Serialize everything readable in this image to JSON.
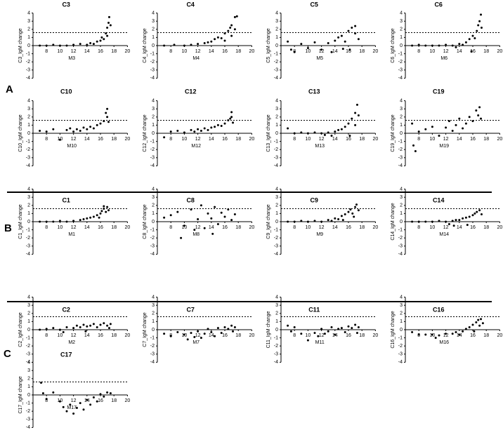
{
  "panel_labels": [
    "A",
    "B",
    "C"
  ],
  "chart_data": [
    {
      "type": "scatter",
      "title": "C3",
      "x_label": "M3",
      "y_label": "C3_IgM change",
      "x": [
        7,
        8,
        9,
        10,
        11,
        12,
        13,
        14,
        14.5,
        15,
        15.5,
        16,
        16.2,
        16.5,
        16.8,
        17,
        17,
        17.2,
        17.3,
        17.5
      ],
      "y": [
        0,
        0,
        0.1,
        0,
        0,
        0.1,
        0.2,
        0.1,
        0.3,
        0.2,
        0.5,
        0.6,
        1.0,
        0.8,
        1.5,
        2.2,
        1.2,
        2.8,
        3.5,
        2.5
      ],
      "xlim": [
        6,
        20
      ],
      "ylim": [
        -4,
        4
      ],
      "xticks": [
        8,
        10,
        12,
        14,
        16,
        18,
        20
      ],
      "yticks": [
        -4,
        -3,
        -2,
        -1,
        0,
        1,
        2,
        3,
        4
      ],
      "reference_line": 1.6,
      "color": "#000000"
    },
    {
      "type": "scatter",
      "title": "C4",
      "x_label": "M4",
      "y_label": "C4_IgM change",
      "x": [
        7,
        8.5,
        10,
        11,
        12,
        13,
        13.5,
        14,
        14.5,
        15,
        15.5,
        16,
        16,
        16.5,
        17,
        17,
        17.5,
        17.5,
        17.8,
        16.8
      ],
      "y": [
        0,
        0.1,
        0,
        0.1,
        0.2,
        0.3,
        0.4,
        0.5,
        0.8,
        1.0,
        0.9,
        1.5,
        0.6,
        1.8,
        2.5,
        1.2,
        3.5,
        2.0,
        3.6,
        2.2
      ],
      "xlim": [
        6,
        20
      ],
      "ylim": [
        -4,
        4
      ],
      "xticks": [
        8,
        10,
        12,
        14,
        16,
        18,
        20
      ],
      "yticks": [
        -4,
        -3,
        -2,
        -1,
        0,
        1,
        2,
        3,
        4
      ],
      "reference_line": 1.6,
      "color": "#000000"
    },
    {
      "type": "scatter",
      "title": "C5",
      "x_label": "M5",
      "y_label": "C5_IgM change",
      "x": [
        7,
        7.5,
        8,
        9,
        10,
        11,
        12,
        13,
        13.5,
        14,
        14.5,
        15,
        15.5,
        16,
        16.5,
        17,
        17,
        17.5,
        16.2,
        15.2
      ],
      "y": [
        0.5,
        -0.5,
        -0.8,
        0.2,
        -0.3,
        0.4,
        -0.5,
        0.3,
        -0.8,
        0.6,
        1.0,
        1.2,
        0.5,
        1.8,
        2.2,
        1.5,
        2.4,
        0.8,
        -0.5,
        -0.4
      ],
      "xlim": [
        6,
        20
      ],
      "ylim": [
        -4,
        4
      ],
      "xticks": [
        8,
        10,
        12,
        14,
        16,
        18,
        20
      ],
      "yticks": [
        -4,
        -3,
        -2,
        -1,
        0,
        1,
        2,
        3,
        4
      ],
      "reference_line": 1.6,
      "color": "#000000"
    },
    {
      "type": "scatter",
      "title": "C6",
      "x_label": "M6",
      "y_label": "C6_IgM change",
      "x": [
        7,
        8,
        9,
        10,
        11,
        12,
        13,
        13.5,
        14,
        14.5,
        15,
        15.5,
        16,
        16.3,
        16.6,
        16.8,
        17,
        17.2,
        17.3,
        15.8
      ],
      "y": [
        0,
        0.1,
        0,
        0,
        0,
        0.1,
        0,
        -0.2,
        0.2,
        0.1,
        0.4,
        0.8,
        1.2,
        0.9,
        1.8,
        2.5,
        3.0,
        3.8,
        2.2,
        -0.7
      ],
      "xlim": [
        6,
        20
      ],
      "ylim": [
        -4,
        4
      ],
      "xticks": [
        8,
        10,
        12,
        14,
        16,
        18,
        20
      ],
      "yticks": [
        -4,
        -3,
        -2,
        -1,
        0,
        1,
        2,
        3,
        4
      ],
      "reference_line": 1.6,
      "color": "#000000"
    },
    {
      "type": "scatter",
      "title": "C10",
      "x_label": "M10",
      "y_label": "C10_IgM change",
      "x": [
        7,
        8,
        9,
        10,
        11,
        11.5,
        12,
        12.5,
        13,
        13.5,
        14,
        14.5,
        15,
        15.5,
        16,
        16.5,
        17,
        17,
        17.2,
        16.8
      ],
      "y": [
        0.3,
        0.2,
        0.5,
        -0.8,
        0.4,
        0.6,
        0.2,
        0.5,
        0.3,
        0.7,
        0.5,
        0.8,
        0.6,
        1.0,
        1.2,
        1.5,
        2.0,
        3.0,
        1.4,
        2.5
      ],
      "xlim": [
        6,
        20
      ],
      "ylim": [
        -4,
        4
      ],
      "xticks": [
        8,
        10,
        12,
        14,
        16,
        18,
        20
      ],
      "yticks": [
        -4,
        -3,
        -2,
        -1,
        0,
        1,
        2,
        3,
        4
      ],
      "reference_line": 1.6,
      "color": "#000000"
    },
    {
      "type": "scatter",
      "title": "C12",
      "x_label": "M12",
      "y_label": "C12_IgM change",
      "x": [
        7,
        8,
        9,
        10,
        11,
        11.5,
        12,
        12.5,
        13,
        13.5,
        14,
        14.5,
        15,
        15.5,
        16,
        16.5,
        17,
        17,
        17.2,
        16.8
      ],
      "y": [
        -0.5,
        0.2,
        0.3,
        0.1,
        0.4,
        0.2,
        0.5,
        0.3,
        0.6,
        0.4,
        0.7,
        0.8,
        1.0,
        0.9,
        1.2,
        1.6,
        2.0,
        2.6,
        1.3,
        1.8
      ],
      "xlim": [
        6,
        20
      ],
      "ylim": [
        -4,
        4
      ],
      "xticks": [
        8,
        10,
        12,
        14,
        16,
        18,
        20
      ],
      "yticks": [
        -4,
        -3,
        -2,
        -1,
        0,
        1,
        2,
        3,
        4
      ],
      "reference_line": 1.6,
      "color": "#000000"
    },
    {
      "type": "scatter",
      "title": "C13",
      "x_label": "M13",
      "y_label": "C13_IgM change",
      "x": [
        7,
        8,
        9,
        10,
        11,
        12,
        12.5,
        13,
        13.5,
        14,
        14.5,
        15,
        15.5,
        16,
        16.5,
        17,
        17,
        17.3,
        17.5,
        16.2
      ],
      "y": [
        0.6,
        0,
        0.1,
        0,
        0.1,
        0,
        -0.2,
        0.1,
        -0.3,
        0.2,
        0.4,
        0.5,
        0.8,
        1.2,
        1.8,
        2.5,
        1.0,
        3.5,
        2.2,
        -0.3
      ],
      "xlim": [
        6,
        20
      ],
      "ylim": [
        -4,
        4
      ],
      "xticks": [
        8,
        10,
        12,
        14,
        16,
        18,
        20
      ],
      "yticks": [
        -4,
        -3,
        -2,
        -1,
        0,
        1,
        2,
        3,
        4
      ],
      "reference_line": 1.6,
      "color": "#000000"
    },
    {
      "type": "scatter",
      "title": "C19",
      "x_label": "M19",
      "y_label": "C19_IgM change",
      "x": [
        7,
        7.2,
        7.5,
        8,
        9,
        10,
        11,
        12,
        12.5,
        13,
        13.5,
        14,
        14.5,
        15,
        15.5,
        16,
        16.5,
        17,
        17.2,
        16.8
      ],
      "y": [
        1.2,
        -1.5,
        -2.2,
        0.2,
        0.5,
        0.8,
        -0.3,
        0.7,
        1.5,
        0.3,
        1.0,
        1.8,
        0.6,
        1.2,
        2.0,
        1.5,
        2.8,
        3.2,
        1.8,
        2.2
      ],
      "xlim": [
        6,
        20
      ],
      "ylim": [
        -4,
        4
      ],
      "xticks": [
        8,
        10,
        12,
        14,
        16,
        18,
        20
      ],
      "yticks": [
        -4,
        -3,
        -2,
        -1,
        0,
        1,
        2,
        3,
        4
      ],
      "reference_line": 1.6,
      "color": "#000000"
    },
    {
      "type": "scatter",
      "title": "C1",
      "x_label": "M1",
      "y_label": "C1_IgM change",
      "x": [
        7,
        8,
        9,
        10,
        11,
        12,
        13,
        13.5,
        14,
        14.5,
        15,
        15.5,
        16,
        16.2,
        16.5,
        16.8,
        17,
        17.2,
        15.8,
        16.5
      ],
      "y": [
        0,
        0,
        0,
        0.1,
        0,
        0.1,
        0.2,
        0.3,
        0.4,
        0.5,
        0.6,
        0.8,
        1.0,
        1.3,
        1.6,
        1.2,
        1.8,
        1.4,
        0.5,
        1.9
      ],
      "xlim": [
        6,
        20
      ],
      "ylim": [
        -4,
        4
      ],
      "xticks": [
        8,
        10,
        12,
        14,
        16,
        18,
        20
      ],
      "yticks": [
        -4,
        -3,
        -2,
        -1,
        0,
        1,
        2,
        3,
        4
      ],
      "reference_line": 1.6,
      "color": "#000000"
    },
    {
      "type": "scatter",
      "title": "C8",
      "x_label": "M8",
      "y_label": "C8_IgM change",
      "x": [
        7,
        8,
        9,
        10,
        11,
        12,
        12.5,
        13,
        13.5,
        14,
        14.5,
        15,
        15.5,
        16,
        16.5,
        17,
        17.5,
        9.5,
        11.5,
        14.2
      ],
      "y": [
        0.5,
        0.8,
        1.2,
        -0.5,
        1.5,
        0.3,
        2.0,
        -0.8,
        1.0,
        0.4,
        1.8,
        -0.3,
        1.1,
        0.6,
        1.5,
        0.2,
        0.9,
        -2.0,
        -1.0,
        -1.5
      ],
      "xlim": [
        6,
        20
      ],
      "ylim": [
        -4,
        4
      ],
      "xticks": [
        8,
        10,
        12,
        14,
        16,
        18,
        20
      ],
      "yticks": [
        -4,
        -3,
        -2,
        -1,
        0,
        1,
        2,
        3,
        4
      ],
      "reference_line": 1.6,
      "color": "#000000"
    },
    {
      "type": "scatter",
      "title": "C9",
      "x_label": "M9",
      "y_label": "C9_IgM change",
      "x": [
        7,
        8,
        9,
        10,
        11,
        12,
        13,
        13.5,
        14,
        14.5,
        15,
        15.5,
        16,
        16.3,
        16.6,
        17,
        17.2,
        17.5,
        15.2,
        16.8
      ],
      "y": [
        0,
        0,
        0.1,
        0,
        0.1,
        0,
        0.2,
        0.1,
        0.4,
        0.3,
        0.7,
        0.9,
        1.2,
        1.5,
        1.0,
        1.8,
        2.1,
        1.4,
        0.2,
        0.6
      ],
      "xlim": [
        6,
        20
      ],
      "ylim": [
        -4,
        4
      ],
      "xticks": [
        8,
        10,
        12,
        14,
        16,
        18,
        20
      ],
      "yticks": [
        -4,
        -3,
        -2,
        -1,
        0,
        1,
        2,
        3,
        4
      ],
      "reference_line": 1.6,
      "color": "#000000"
    },
    {
      "type": "scatter",
      "title": "C14",
      "x_label": "M14",
      "y_label": "C14_IgM change",
      "x": [
        7,
        8,
        9,
        10,
        11,
        12,
        12.5,
        13,
        13.5,
        14,
        14.5,
        15,
        15.5,
        16,
        16.3,
        16.6,
        17,
        17.3,
        13.2,
        15.2
      ],
      "y": [
        0,
        0,
        0,
        0,
        0.1,
        0,
        -0.3,
        0.1,
        0.2,
        0.2,
        0.4,
        0.5,
        0.6,
        0.8,
        1.0,
        1.2,
        1.4,
        0.9,
        -0.5,
        -0.4
      ],
      "xlim": [
        6,
        20
      ],
      "ylim": [
        -4,
        4
      ],
      "xticks": [
        8,
        10,
        12,
        14,
        16,
        18,
        20
      ],
      "yticks": [
        -4,
        -3,
        -2,
        -1,
        0,
        1,
        2,
        3,
        4
      ],
      "reference_line": 1.6,
      "color": "#000000"
    },
    {
      "type": "scatter",
      "title": "C2",
      "x_label": "M2",
      "y_label": "C2_IgM change",
      "x": [
        7,
        8,
        9,
        10,
        11,
        12,
        12.5,
        13,
        13.5,
        14,
        14.5,
        15,
        15.5,
        16,
        16.5,
        17,
        17.3,
        17.5,
        10.5,
        13.8
      ],
      "y": [
        0,
        0.1,
        0.2,
        0,
        0.3,
        0.2,
        0.5,
        0.3,
        0.6,
        0.4,
        0.5,
        0.7,
        0.3,
        0.6,
        0.8,
        0.5,
        0.2,
        0.7,
        -0.3,
        -0.2
      ],
      "xlim": [
        6,
        20
      ],
      "ylim": [
        -4,
        4
      ],
      "xticks": [
        8,
        10,
        12,
        14,
        16,
        18,
        20
      ],
      "yticks": [
        -4,
        -3,
        -2,
        -1,
        0,
        1,
        2,
        3,
        4
      ],
      "reference_line": 1.6,
      "color": "#000000"
    },
    {
      "type": "scatter",
      "title": "C7",
      "x_label": "M7",
      "y_label": "C7_IgM change",
      "x": [
        7,
        8,
        9,
        10,
        10.5,
        11,
        11.5,
        12,
        12.5,
        13,
        13.5,
        14,
        14.5,
        15,
        15.5,
        16,
        16.5,
        17,
        17.5,
        17.2
      ],
      "y": [
        -0.5,
        -0.8,
        -0.3,
        -0.6,
        -1.2,
        -0.4,
        -0.9,
        -0.2,
        -1.0,
        -0.5,
        0.1,
        -0.3,
        -0.8,
        0.2,
        -0.4,
        0.3,
        0.1,
        0.5,
        0.3,
        -0.2
      ],
      "xlim": [
        6,
        20
      ],
      "ylim": [
        -4,
        4
      ],
      "xticks": [
        8,
        10,
        12,
        14,
        16,
        18,
        20
      ],
      "yticks": [
        -4,
        -3,
        -2,
        -1,
        0,
        1,
        2,
        3,
        4
      ],
      "reference_line": 1.6,
      "color": "#000000"
    },
    {
      "type": "scatter",
      "title": "C11",
      "x_label": "M11",
      "y_label": "C11_IgM change",
      "x": [
        7,
        7.5,
        8,
        9,
        10,
        11,
        11.5,
        12,
        12.5,
        13,
        13.5,
        14,
        14.5,
        15,
        15.5,
        16,
        16.5,
        17,
        17.5,
        17.3
      ],
      "y": [
        0.5,
        -0.2,
        0.3,
        -0.5,
        -1.3,
        -0.4,
        -0.8,
        0.1,
        -0.5,
        -0.2,
        0.3,
        -0.6,
        0.1,
        0.2,
        -0.3,
        0.4,
        0.2,
        0.6,
        0.3,
        -0.4
      ],
      "xlim": [
        6,
        20
      ],
      "ylim": [
        -4,
        4
      ],
      "xticks": [
        8,
        10,
        12,
        14,
        16,
        18,
        20
      ],
      "yticks": [
        -4,
        -3,
        -2,
        -1,
        0,
        1,
        2,
        3,
        4
      ],
      "reference_line": 1.6,
      "color": "#000000"
    },
    {
      "type": "scatter",
      "title": "C16",
      "x_label": "M16",
      "y_label": "C16_IgM change",
      "x": [
        7,
        8,
        9,
        10,
        10.5,
        11,
        12,
        13,
        13.5,
        14,
        14.5,
        15,
        15.5,
        16,
        16.5,
        16.8,
        17,
        17.2,
        17.5,
        16.2
      ],
      "y": [
        -0.3,
        -0.6,
        -0.6,
        -0.6,
        -1.0,
        -0.7,
        -0.5,
        -0.5,
        -0.3,
        -0.6,
        -0.2,
        0.1,
        0.3,
        0.6,
        0.9,
        1.2,
        0.5,
        1.3,
        0.8,
        -0.2
      ],
      "xlim": [
        6,
        20
      ],
      "ylim": [
        -4,
        4
      ],
      "xticks": [
        8,
        10,
        12,
        14,
        16,
        18,
        20
      ],
      "yticks": [
        -4,
        -3,
        -2,
        -1,
        0,
        1,
        2,
        3,
        4
      ],
      "reference_line": 1.6,
      "color": "#000000"
    },
    {
      "type": "scatter",
      "title": "C17",
      "x_label": "M17",
      "y_label": "C17_IgM change",
      "x": [
        7.2,
        7.5,
        8,
        9,
        10,
        10.5,
        11,
        11.5,
        12,
        12.5,
        13,
        13.5,
        14,
        14.5,
        15,
        15.5,
        16,
        16.5,
        17,
        17.5
      ],
      "y": [
        1.5,
        0.2,
        -0.5,
        0.3,
        -0.8,
        -1.5,
        -2.0,
        -1.2,
        -2.3,
        -1.6,
        -1.0,
        -1.8,
        -0.6,
        -1.2,
        -0.3,
        -0.8,
        0.1,
        -0.2,
        0.3,
        0.2
      ],
      "xlim": [
        6,
        20
      ],
      "ylim": [
        -4,
        4
      ],
      "xticks": [
        8,
        10,
        12,
        14,
        16,
        18,
        20
      ],
      "yticks": [
        -4,
        -3,
        -2,
        -1,
        0,
        1,
        2,
        3,
        4
      ],
      "reference_line": 1.6,
      "color": "#000000"
    }
  ]
}
